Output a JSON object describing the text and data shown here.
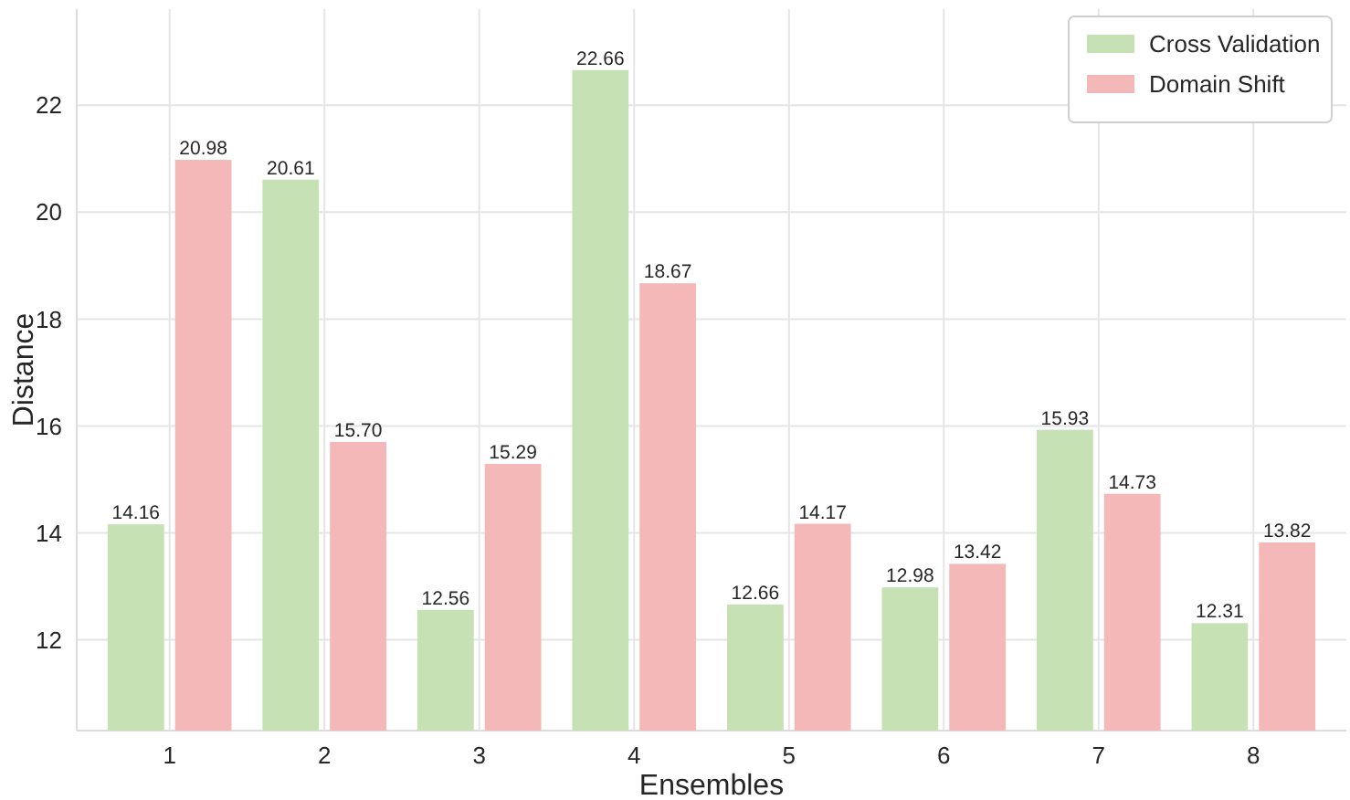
{
  "chart_data": {
    "type": "bar",
    "xlabel": "Ensembles",
    "ylabel": "Distance",
    "categories": [
      "1",
      "2",
      "3",
      "4",
      "5",
      "6",
      "7",
      "8"
    ],
    "series": [
      {
        "name": "Cross Validation",
        "color": "#c6e2b5",
        "values": [
          14.16,
          20.61,
          12.56,
          22.66,
          12.66,
          12.98,
          15.93,
          12.31
        ],
        "value_labels": [
          "14.16",
          "20.61",
          "12.56",
          "22.66",
          "12.66",
          "12.98",
          "15.93",
          "12.31"
        ]
      },
      {
        "name": "Domain Shift",
        "color": "#f5b8b8",
        "values": [
          20.98,
          15.7,
          15.29,
          18.67,
          14.17,
          13.42,
          14.73,
          13.82
        ],
        "value_labels": [
          "20.98",
          "15.70",
          "15.29",
          "18.67",
          "14.17",
          "13.42",
          "14.73",
          "13.82"
        ]
      }
    ],
    "ylim": [
      10.3,
      23.8
    ],
    "yticks": [
      12,
      14,
      16,
      18,
      20,
      22
    ],
    "grid": true,
    "legend": "top right"
  }
}
